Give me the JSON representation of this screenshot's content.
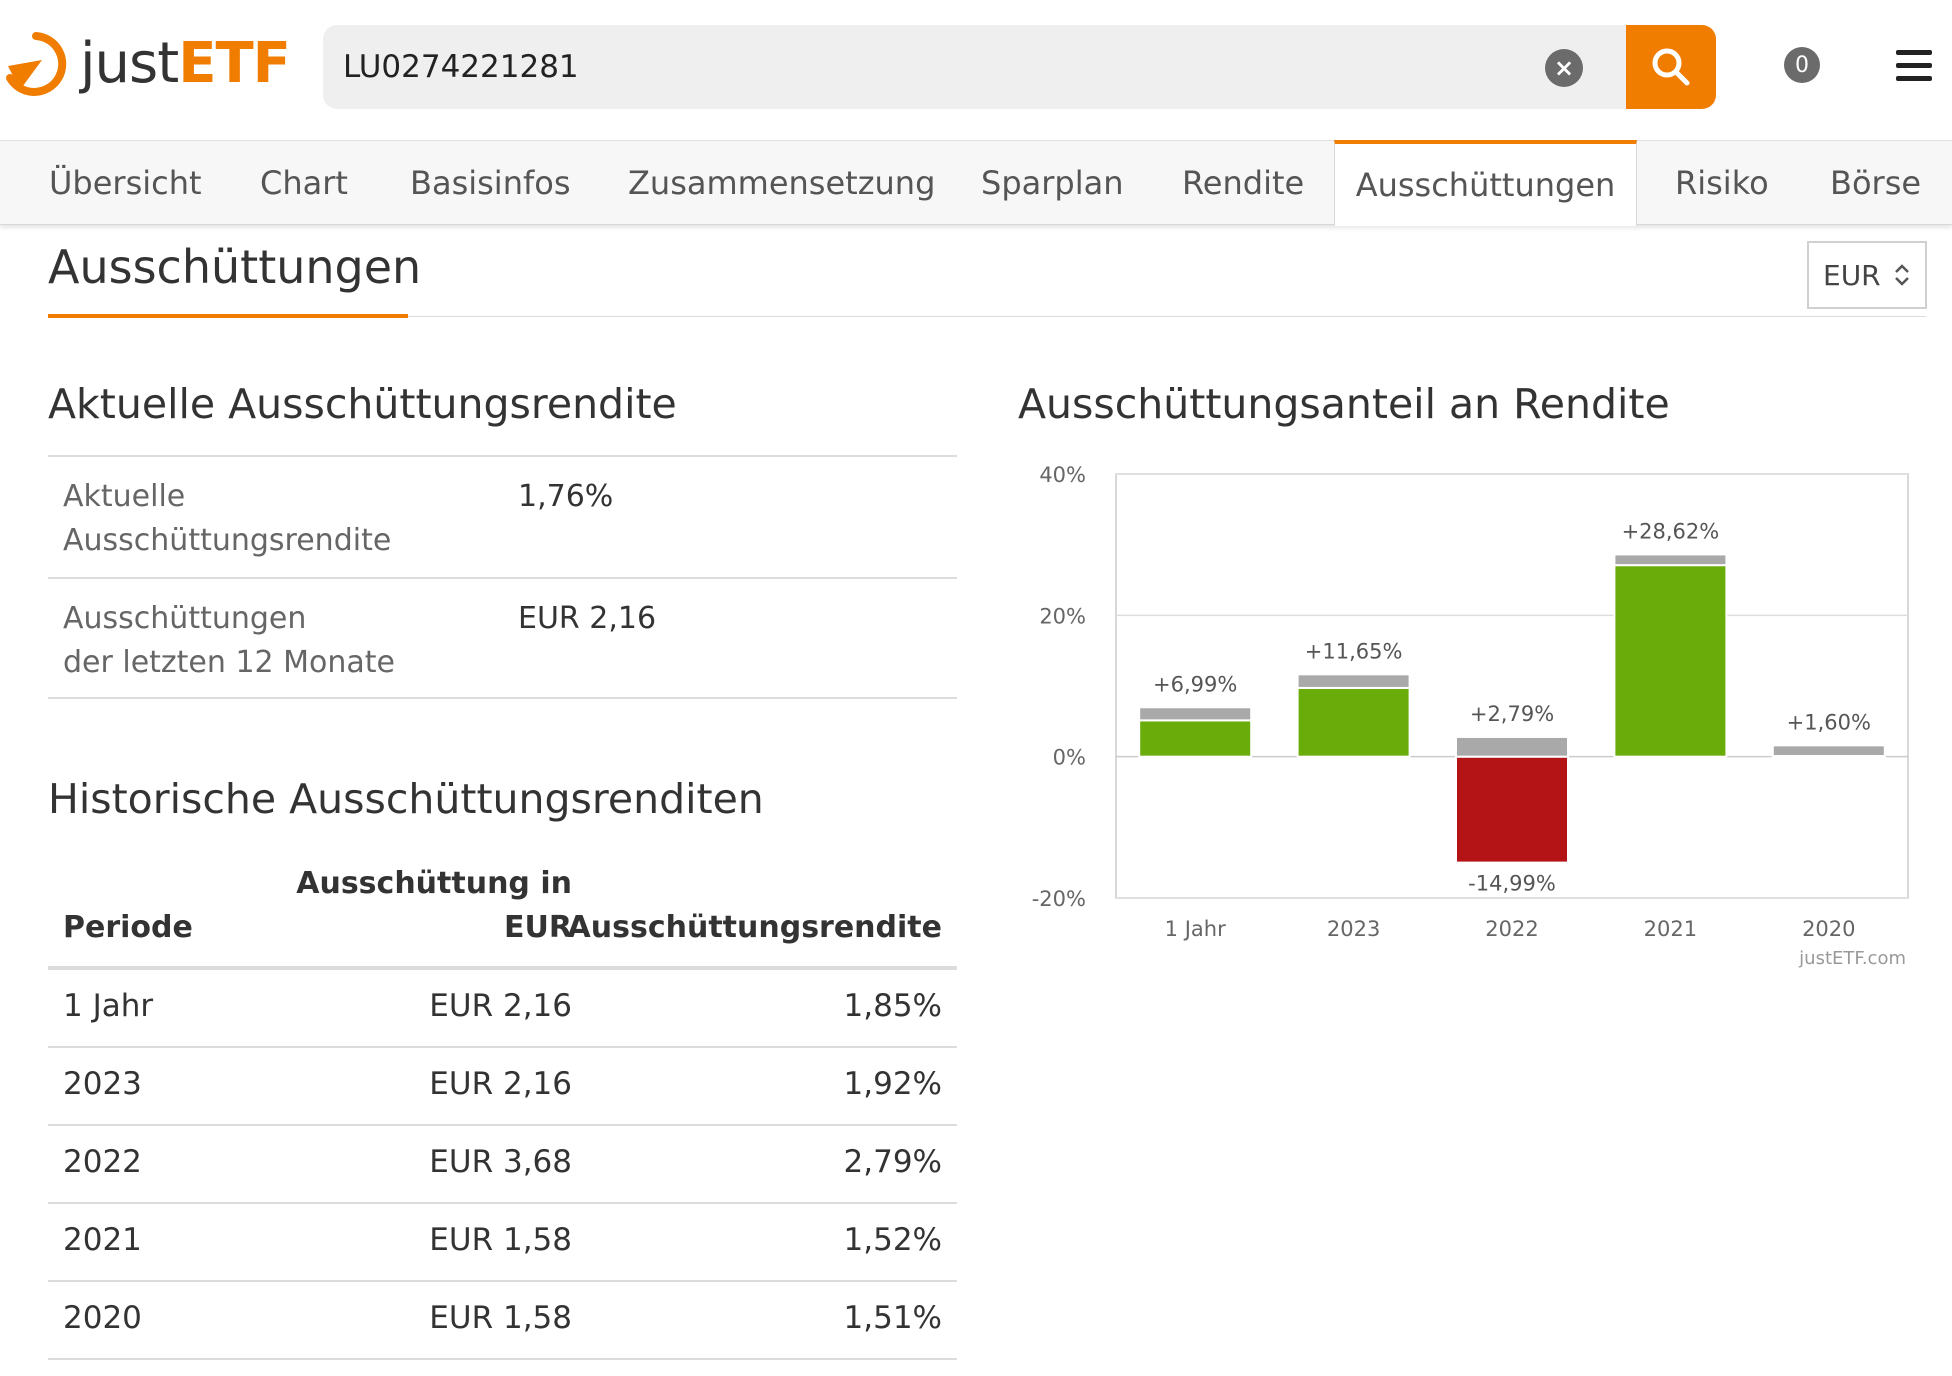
{
  "header": {
    "logo_just": "just",
    "logo_etf": "ETF",
    "search_value": "LU0274221281",
    "cart_count": "0"
  },
  "tabs": [
    {
      "label": "Übersicht"
    },
    {
      "label": "Chart"
    },
    {
      "label": "Basisinfos"
    },
    {
      "label": "Zusammensetzung"
    },
    {
      "label": "Sparplan"
    },
    {
      "label": "Rendite"
    },
    {
      "label": "Ausschüttungen"
    },
    {
      "label": "Risiko"
    },
    {
      "label": "Börse"
    }
  ],
  "page": {
    "title": "Ausschüttungen",
    "currency": "EUR"
  },
  "current": {
    "heading": "Aktuelle Ausschüttungsrendite",
    "rows": [
      {
        "label_line1": "Aktuelle",
        "label_line2": "Ausschüttungsrendite",
        "value": "1,76%"
      },
      {
        "label_line1": "Ausschüttungen",
        "label_line2": "der letzten 12 Monate",
        "value": "EUR 2,16"
      }
    ]
  },
  "historic": {
    "heading": "Historische Ausschüttungsrenditen",
    "col_period": "Periode",
    "col_amount_line1": "Ausschüttung in",
    "col_amount_line2": "EUR",
    "col_yield": "Ausschüttungsrendite",
    "rows": [
      {
        "period": "1 Jahr",
        "amount": "EUR 2,16",
        "yield": "1,85%"
      },
      {
        "period": "2023",
        "amount": "EUR 2,16",
        "yield": "1,92%"
      },
      {
        "period": "2022",
        "amount": "EUR 3,68",
        "yield": "2,79%"
      },
      {
        "period": "2021",
        "amount": "EUR 1,58",
        "yield": "1,52%"
      },
      {
        "period": "2020",
        "amount": "EUR 1,58",
        "yield": "1,51%"
      }
    ]
  },
  "chart_heading": "Ausschüttungsanteil an Rendite",
  "chart_data": {
    "type": "bar",
    "categories": [
      "1 Jahr",
      "2023",
      "2022",
      "2021",
      "2020"
    ],
    "series": [
      {
        "values": [
          5.14,
          9.73,
          -14.99,
          27.1,
          0.09
        ]
      },
      {
        "values": [
          1.85,
          1.92,
          2.79,
          1.52,
          1.51
        ]
      }
    ],
    "data_labels": [
      "+6,99%",
      "+11,65%",
      "+2,79%",
      "+28,62%",
      "+1,60%"
    ],
    "negative_label": {
      "index": 2,
      "text": "-14,99%"
    },
    "ylim": [
      -20,
      40
    ],
    "yticks": [
      -20,
      0,
      20,
      40
    ],
    "ytick_labels": [
      "-20%",
      "0%",
      "20%",
      "40%"
    ],
    "grid": true,
    "credit": "justETF.com",
    "colors": {
      "positive": "#6aac0a",
      "negative": "#b41416",
      "distribution": "#a9a9a9"
    }
  },
  "colors": {
    "accent": "#f07d00"
  }
}
